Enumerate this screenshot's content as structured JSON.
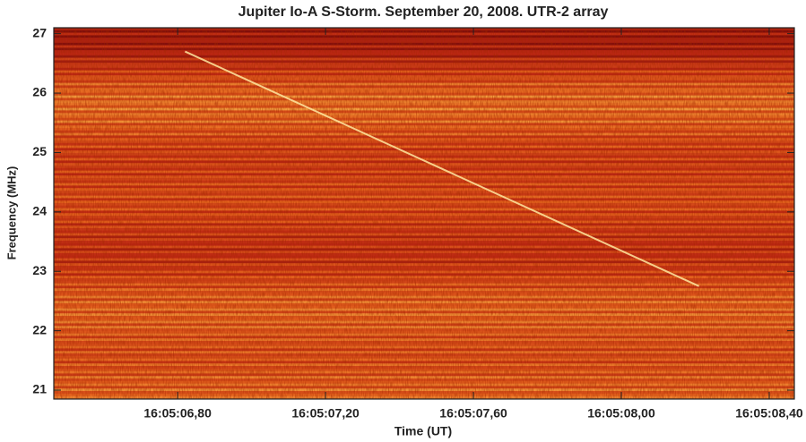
{
  "chart_data": {
    "type": "spectrogram",
    "title": "Jupiter Io-A S-Storm. September 20, 2008. UTR-2 array",
    "x_label": "Time (UT)",
    "y_label": "Frequency (MHz)",
    "xlim": [
      6.465,
      8.468
    ],
    "ylim": [
      20.85,
      27.1
    ],
    "xticks": [
      {
        "value": 6.8,
        "label": "16:05:06,80"
      },
      {
        "value": 7.2,
        "label": "16:05:07,20"
      },
      {
        "value": 7.6,
        "label": "16:05:07,60"
      },
      {
        "value": 8.0,
        "label": "16:05:08,00"
      },
      {
        "value": 8.4,
        "label": "16:05:08,40"
      }
    ],
    "yticks": [
      21,
      22,
      23,
      24,
      25,
      26,
      27
    ],
    "burst": {
      "x": [
        6.82,
        8.21
      ],
      "y": [
        26.7,
        22.75
      ]
    }
  }
}
